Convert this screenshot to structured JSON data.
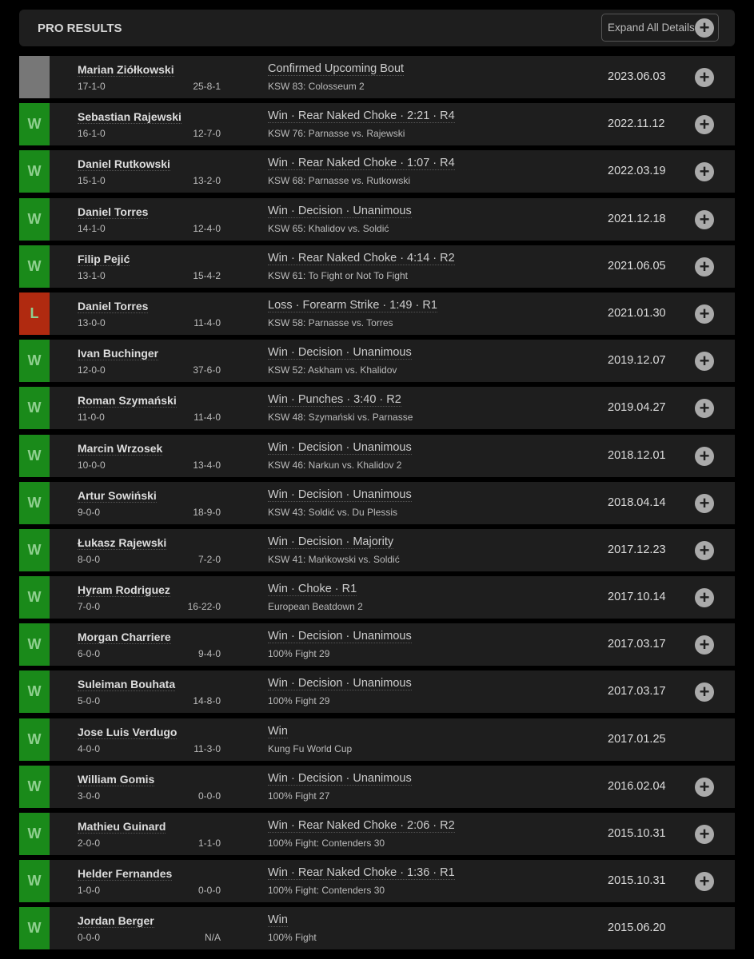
{
  "header": {
    "title": "PRO RESULTS",
    "expand_label": "Expand All Details"
  },
  "colors": {
    "win": "#1a8a1a",
    "loss": "#b02a10",
    "upcoming": "#777777"
  },
  "fights": [
    {
      "result": "",
      "status": "upcoming",
      "opponent": "Marian Ziółkowski",
      "record": "17-1-0",
      "opp_record": "25-8-1",
      "method": "Confirmed Upcoming Bout",
      "event": "KSW 83: Colosseum 2",
      "date": "2023.06.03",
      "expandable": true
    },
    {
      "result": "W",
      "status": "win",
      "opponent": "Sebastian Rajewski",
      "record": "16-1-0",
      "opp_record": "12-7-0",
      "method": "Win · Rear Naked Choke · 2:21 · R4",
      "event": "KSW 76: Parnasse vs. Rajewski",
      "date": "2022.11.12",
      "expandable": true
    },
    {
      "result": "W",
      "status": "win",
      "opponent": "Daniel Rutkowski",
      "record": "15-1-0",
      "opp_record": "13-2-0",
      "method": "Win · Rear Naked Choke · 1:07 · R4",
      "event": "KSW 68: Parnasse vs. Rutkowski",
      "date": "2022.03.19",
      "expandable": true
    },
    {
      "result": "W",
      "status": "win",
      "opponent": "Daniel Torres",
      "record": "14-1-0",
      "opp_record": "12-4-0",
      "method": "Win · Decision · Unanimous",
      "event": "KSW 65: Khalidov vs. Soldić",
      "date": "2021.12.18",
      "expandable": true
    },
    {
      "result": "W",
      "status": "win",
      "opponent": "Filip Pejić",
      "record": "13-1-0",
      "opp_record": "15-4-2",
      "method": "Win · Rear Naked Choke · 4:14 · R2",
      "event": "KSW 61: To Fight or Not To Fight",
      "date": "2021.06.05",
      "expandable": true
    },
    {
      "result": "L",
      "status": "loss",
      "opponent": "Daniel Torres",
      "record": "13-0-0",
      "opp_record": "11-4-0",
      "method": "Loss · Forearm Strike · 1:49 · R1",
      "event": "KSW 58: Parnasse vs. Torres",
      "date": "2021.01.30",
      "expandable": true
    },
    {
      "result": "W",
      "status": "win",
      "opponent": "Ivan Buchinger",
      "record": "12-0-0",
      "opp_record": "37-6-0",
      "method": "Win · Decision · Unanimous",
      "event": "KSW 52: Askham vs. Khalidov",
      "date": "2019.12.07",
      "expandable": true
    },
    {
      "result": "W",
      "status": "win",
      "opponent": "Roman Szymański",
      "record": "11-0-0",
      "opp_record": "11-4-0",
      "method": "Win · Punches · 3:40 · R2",
      "event": "KSW 48: Szymański vs. Parnasse",
      "date": "2019.04.27",
      "expandable": true
    },
    {
      "result": "W",
      "status": "win",
      "opponent": "Marcin Wrzosek",
      "record": "10-0-0",
      "opp_record": "13-4-0",
      "method": "Win · Decision · Unanimous",
      "event": "KSW 46: Narkun vs. Khalidov 2",
      "date": "2018.12.01",
      "expandable": true
    },
    {
      "result": "W",
      "status": "win",
      "opponent": "Artur Sowiński",
      "record": "9-0-0",
      "opp_record": "18-9-0",
      "method": "Win · Decision · Unanimous",
      "event": "KSW 43: Soldić vs. Du Plessis",
      "date": "2018.04.14",
      "expandable": true
    },
    {
      "result": "W",
      "status": "win",
      "opponent": "Łukasz Rajewski",
      "record": "8-0-0",
      "opp_record": "7-2-0",
      "method": "Win · Decision · Majority",
      "event": "KSW 41: Mańkowski vs. Soldić",
      "date": "2017.12.23",
      "expandable": true
    },
    {
      "result": "W",
      "status": "win",
      "opponent": "Hyram Rodriguez",
      "record": "7-0-0",
      "opp_record": "16-22-0",
      "method": "Win · Choke · R1",
      "event": "European Beatdown 2",
      "date": "2017.10.14",
      "expandable": true
    },
    {
      "result": "W",
      "status": "win",
      "opponent": "Morgan Charriere",
      "record": "6-0-0",
      "opp_record": "9-4-0",
      "method": "Win · Decision · Unanimous",
      "event": "100% Fight 29",
      "date": "2017.03.17",
      "expandable": true
    },
    {
      "result": "W",
      "status": "win",
      "opponent": "Suleiman Bouhata",
      "record": "5-0-0",
      "opp_record": "14-8-0",
      "method": "Win · Decision · Unanimous",
      "event": "100% Fight 29",
      "date": "2017.03.17",
      "expandable": true
    },
    {
      "result": "W",
      "status": "win",
      "opponent": "Jose Luis Verdugo",
      "record": "4-0-0",
      "opp_record": "11-3-0",
      "method": "Win",
      "event": "Kung Fu World Cup",
      "date": "2017.01.25",
      "expandable": false
    },
    {
      "result": "W",
      "status": "win",
      "opponent": "William Gomis",
      "record": "3-0-0",
      "opp_record": "0-0-0",
      "method": "Win · Decision · Unanimous",
      "event": "100% Fight 27",
      "date": "2016.02.04",
      "expandable": true
    },
    {
      "result": "W",
      "status": "win",
      "opponent": "Mathieu Guinard",
      "record": "2-0-0",
      "opp_record": "1-1-0",
      "method": "Win · Rear Naked Choke · 2:06 · R2",
      "event": "100% Fight: Contenders 30",
      "date": "2015.10.31",
      "expandable": true
    },
    {
      "result": "W",
      "status": "win",
      "opponent": "Helder Fernandes",
      "record": "1-0-0",
      "opp_record": "0-0-0",
      "method": "Win · Rear Naked Choke · 1:36 · R1",
      "event": "100% Fight: Contenders 30",
      "date": "2015.10.31",
      "expandable": true
    },
    {
      "result": "W",
      "status": "win",
      "opponent": "Jordan Berger",
      "record": "0-0-0",
      "opp_record": "N/A",
      "method": "Win",
      "event": "100% Fight",
      "date": "2015.06.20",
      "expandable": false
    }
  ]
}
